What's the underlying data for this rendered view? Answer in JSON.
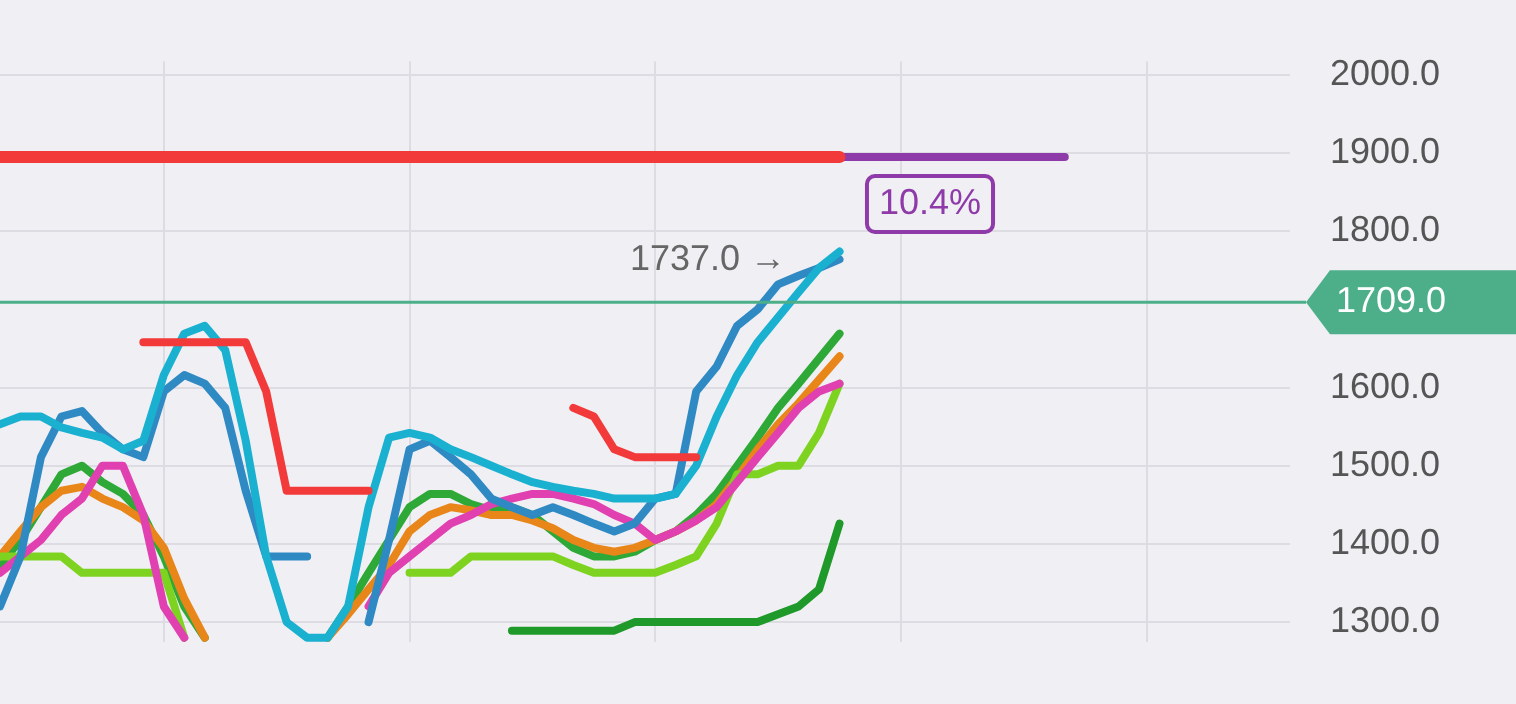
{
  "chart_data": {
    "type": "line",
    "categories": [
      null,
      null,
      null,
      null,
      null,
      null,
      null,
      null,
      null,
      null,
      null,
      null,
      null,
      null,
      null,
      null,
      null,
      null,
      null,
      null,
      null,
      null,
      null,
      null,
      null,
      null,
      null,
      null,
      null,
      null,
      null,
      null,
      null,
      null,
      null,
      null,
      null,
      null,
      null,
      null,
      null,
      null,
      null,
      null,
      null,
      null,
      null,
      null,
      null,
      null,
      null,
      null,
      null,
      null,
      null,
      null,
      null,
      null,
      null,
      null,
      null,
      null,
      null,
      null
    ],
    "series": [
      {
        "color": "#f23a3a",
        "values": [
          1895,
          1895,
          1895,
          1895,
          1895,
          1895,
          1895,
          1895,
          1895,
          1895,
          1895,
          1895,
          1895,
          1895,
          1895,
          1895,
          1895,
          1895,
          1895,
          1895,
          1895,
          1895,
          1895,
          1895,
          1895,
          1895,
          1895,
          1895,
          1895,
          1895,
          1895,
          1895,
          1895,
          1895,
          1895,
          1895,
          1895,
          1895,
          1895,
          1895,
          1895,
          1895,
          null,
          null,
          null,
          null,
          null,
          null,
          null,
          null,
          null,
          null,
          null,
          null,
          null,
          null,
          null,
          null,
          null,
          null,
          null,
          null,
          null,
          null
        ]
      },
      {
        "color": "#8e3aa8",
        "values": [
          null,
          null,
          null,
          null,
          null,
          null,
          null,
          null,
          null,
          null,
          null,
          null,
          null,
          null,
          null,
          null,
          null,
          null,
          null,
          null,
          null,
          null,
          null,
          null,
          null,
          null,
          null,
          null,
          null,
          null,
          null,
          null,
          null,
          null,
          null,
          null,
          null,
          null,
          null,
          null,
          null,
          1895,
          1895,
          1895,
          1895,
          1895,
          1895,
          1895,
          1895,
          1895,
          1895,
          1895,
          1895,
          null,
          null,
          null,
          null,
          null,
          null,
          null,
          null,
          null,
          null,
          null
        ]
      },
      {
        "color": "#f23a3a",
        "values": [
          null,
          null,
          null,
          null,
          null,
          null,
          null,
          1658,
          1658,
          1658,
          1658,
          1658,
          1658,
          1595,
          1468,
          1468,
          1468,
          1468,
          1468,
          null,
          null,
          null,
          null,
          null,
          null,
          null,
          null,
          null,
          1574,
          1563,
          1521,
          1511,
          1511,
          1511,
          1511,
          null,
          null,
          null,
          null,
          null,
          null,
          null,
          null,
          null,
          null,
          null,
          null,
          null,
          null,
          null,
          null,
          null,
          null,
          null,
          null,
          null,
          null,
          null,
          null,
          null,
          null,
          null,
          null,
          null
        ]
      },
      {
        "color": "#1ab0d0",
        "values": [
          1553,
          1563,
          1563,
          1549,
          1542,
          1536,
          1521,
          1532,
          1616,
          1669,
          1679,
          1648,
          1532,
          1384,
          1300,
          1280,
          1280,
          1320,
          1447,
          1536,
          1542,
          1536,
          1521,
          1511,
          1500,
          1489,
          1479,
          1473,
          1468,
          1464,
          1458,
          1458,
          1458,
          1464,
          1500,
          1563,
          1616,
          1658,
          1690,
          1722,
          1753,
          1774,
          null,
          null,
          null,
          null,
          null,
          null,
          null,
          null,
          null,
          null,
          null,
          null,
          null,
          null,
          null,
          null,
          null,
          null,
          null,
          null,
          null,
          null
        ]
      },
      {
        "color": "#2f8ac4",
        "values": [
          1320,
          1384,
          1511,
          1563,
          1570,
          1542,
          1521,
          1511,
          1595,
          1616,
          1605,
          1574,
          1468,
          1384,
          1384,
          1384,
          null,
          null,
          1300,
          1405,
          1521,
          1532,
          1511,
          1489,
          1458,
          1447,
          1437,
          1447,
          1437,
          1426,
          1416,
          1426,
          1458,
          1464,
          1595,
          1627,
          1679,
          1700,
          1732,
          1743,
          1753,
          1764,
          null,
          null,
          null,
          null,
          null,
          null,
          null,
          null,
          null,
          null,
          null,
          null,
          null,
          null,
          null,
          null,
          null,
          null,
          null,
          null,
          null,
          null
        ]
      },
      {
        "color": "#e040b0",
        "values": [
          1363,
          1384,
          1405,
          1437,
          1458,
          1500,
          1500,
          1437,
          1320,
          1280,
          null,
          null,
          null,
          null,
          null,
          null,
          null,
          null,
          1320,
          1363,
          1384,
          1405,
          1426,
          1437,
          1451,
          1458,
          1464,
          1464,
          1458,
          1451,
          1437,
          1426,
          1405,
          1416,
          1430,
          1447,
          1479,
          1511,
          1542,
          1574,
          1595,
          1605,
          null,
          null,
          null,
          null,
          null,
          null,
          null,
          null,
          null,
          null,
          null,
          null,
          null,
          null,
          null,
          null,
          null,
          null,
          null,
          null,
          null,
          null
        ]
      },
      {
        "color": "#7ed321",
        "values": [
          1384,
          1384,
          1384,
          1384,
          1363,
          1363,
          1363,
          1363,
          1363,
          1280,
          null,
          null,
          null,
          null,
          null,
          null,
          null,
          null,
          null,
          null,
          1363,
          1363,
          1363,
          1384,
          1384,
          1384,
          1384,
          1384,
          1373,
          1363,
          1363,
          1363,
          1363,
          1373,
          1384,
          1426,
          1489,
          1489,
          1500,
          1500,
          1542,
          1605,
          null,
          null,
          null,
          null,
          null,
          null,
          null,
          null,
          null,
          null,
          null,
          null,
          null,
          null,
          null,
          null,
          null,
          null,
          null,
          null,
          null,
          null
        ]
      },
      {
        "color": "#e8861a",
        "values": [
          1384,
          1416,
          1447,
          1468,
          1473,
          1458,
          1447,
          1430,
          1395,
          1330,
          1280,
          null,
          null,
          null,
          null,
          null,
          1280,
          1310,
          1342,
          1373,
          1416,
          1437,
          1447,
          1443,
          1437,
          1437,
          1430,
          1420,
          1405,
          1395,
          1390,
          1395,
          1405,
          1416,
          1430,
          1451,
          1485,
          1521,
          1553,
          1580,
          1610,
          1640,
          null,
          null,
          null,
          null,
          null,
          null,
          null,
          null,
          null,
          null,
          null,
          null,
          null,
          null,
          null,
          null,
          null,
          null,
          null,
          null,
          null,
          null
        ]
      },
      {
        "color": "#2ea836",
        "values": [
          1373,
          1405,
          1447,
          1489,
          1500,
          1479,
          1464,
          1437,
          1384,
          1320,
          1280,
          null,
          null,
          null,
          null,
          null,
          1280,
          1320,
          1363,
          1405,
          1447,
          1464,
          1464,
          1451,
          1443,
          1447,
          1437,
          1416,
          1395,
          1384,
          1384,
          1390,
          1405,
          1416,
          1437,
          1464,
          1500,
          1536,
          1574,
          1605,
          1637,
          1669,
          null,
          null,
          null,
          null,
          null,
          null,
          null,
          null,
          null,
          null,
          null,
          null,
          null,
          null,
          null,
          null,
          null,
          null,
          null,
          null,
          null,
          null
        ]
      },
      {
        "color": "#1f9a2a",
        "values": [
          null,
          null,
          null,
          null,
          null,
          null,
          null,
          null,
          null,
          null,
          null,
          null,
          null,
          null,
          null,
          null,
          null,
          null,
          null,
          null,
          null,
          null,
          null,
          null,
          null,
          1289,
          1289,
          1289,
          1289,
          1289,
          1289,
          1300,
          1300,
          1300,
          1300,
          1300,
          1300,
          1300,
          1310,
          1320,
          1342,
          1426,
          null,
          null,
          null,
          null,
          null,
          null,
          null,
          null,
          null,
          null,
          null,
          null,
          null,
          null,
          null,
          null,
          null,
          null,
          null,
          null,
          null,
          null
        ]
      }
    ],
    "ylim": [
      1274,
      2017
    ],
    "yticks": [
      {
        "value": 1300,
        "label": "1300.0"
      },
      {
        "value": 1400,
        "label": "1400.0"
      },
      {
        "value": 1500,
        "label": "1500.0"
      },
      {
        "value": 1600,
        "label": "1600.0"
      },
      {
        "value": 1800,
        "label": "1800.0"
      },
      {
        "value": 1900,
        "label": "1900.0"
      },
      {
        "value": 2000,
        "label": "2000.0"
      }
    ],
    "ref_lines": [
      {
        "axis": "y",
        "value": 1709,
        "label": "1709.0",
        "color": "#4caf8a"
      }
    ],
    "annotations": [
      "1737.0 →",
      "10.4%"
    ],
    "grid": true,
    "tick_labels": "y",
    "legend": false,
    "marker": "none",
    "line_style": "solid"
  }
}
